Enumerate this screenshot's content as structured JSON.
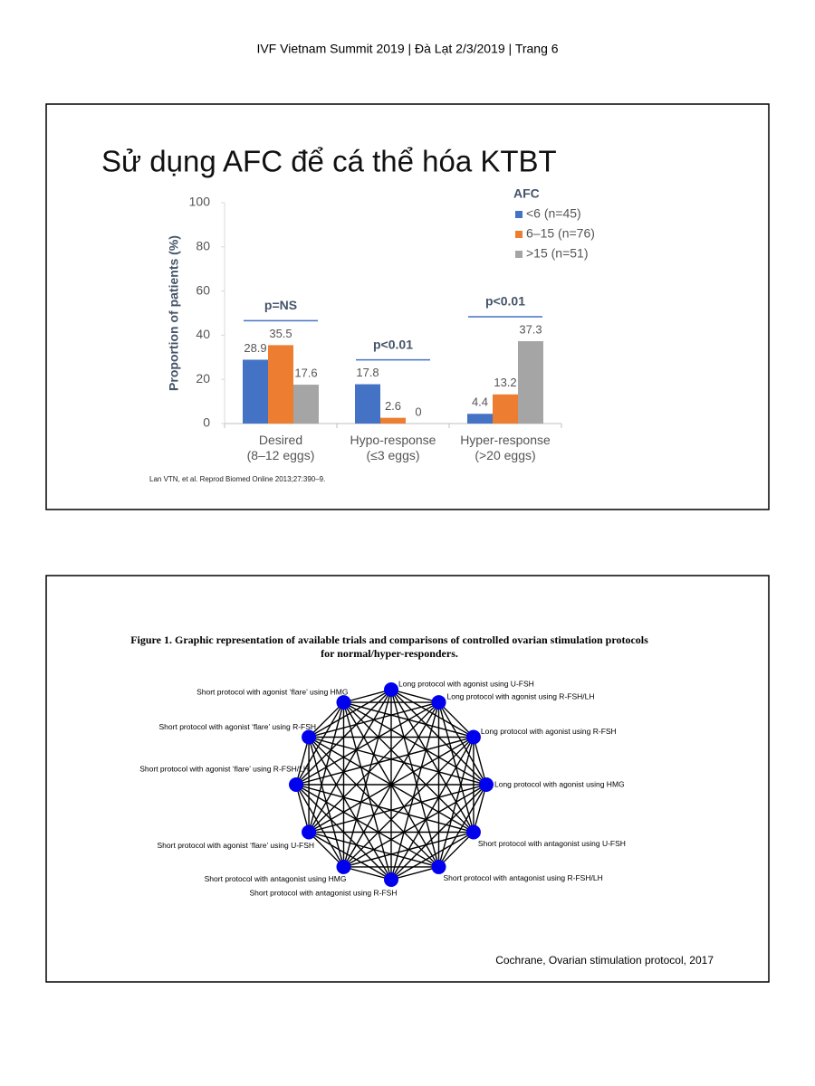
{
  "header": {
    "text": "IVF Vietnam Summit 2019   |   Đà Lạt 2/3/2019   |   Trang 6"
  },
  "slide1": {
    "title": "Sử dụng AFC để cá thể hóa KTBT",
    "citation": "Lan VTN, et al. Reprod Biomed Online 2013;27:390–9."
  },
  "chart_data": {
    "type": "bar",
    "ylabel": "Proportion of patients (%)",
    "legend_title": "AFC",
    "categories": [
      "Desired\n(8–12 eggs)",
      "Hypo-response\n(≤3 eggs)",
      "Hyper-response\n(>20 eggs)"
    ],
    "series": [
      {
        "name": "<6 (n=45)",
        "color": "#4472c4",
        "values": [
          28.9,
          17.8,
          4.4
        ]
      },
      {
        "name": "6–15 (n=76)",
        "color": "#ed7d31",
        "values": [
          35.5,
          2.6,
          13.2
        ]
      },
      {
        "name": ">15 (n=51)",
        "color": "#a5a5a5",
        "values": [
          17.6,
          0,
          37.3
        ]
      }
    ],
    "annotations": [
      "p=NS",
      "p<0.01",
      "p<0.01"
    ],
    "ylim": [
      0,
      100
    ],
    "yticks": [
      0,
      20,
      40,
      60,
      80,
      100
    ],
    "grid": false
  },
  "slide2": {
    "caption": "Figure 1.   Graphic representation of available trials and comparisons of controlled ovarian stimulation protocols for normal/hyper-responders.",
    "nodes": [
      {
        "label": "Long protocol with agonist  using U-FSH"
      },
      {
        "label": "Long protocol with agonist  using R-FSH/LH"
      },
      {
        "label": "Long protocol with agonist  using R-FSH"
      },
      {
        "label": "Long protocol with agonist  using HMG"
      },
      {
        "label": "Short protocol with antagonist using U-FSH"
      },
      {
        "label": "Short protocol with antagonist using R-FSH/LH"
      },
      {
        "label": "Short protocol with antagonist using R-FSH"
      },
      {
        "label": "Short protocol with antagonist using HMG"
      },
      {
        "label": "Short protocol with agonist ‘flare’ using U-FSH"
      },
      {
        "label": "Short protocol with agonist ‘flare’ using R-FSH/LH"
      },
      {
        "label": "Short protocol with agonist ‘flare’ using R-FSH"
      },
      {
        "label": "Short protocol with agonist ‘flare’ using HMG"
      }
    ],
    "source": "Cochrane, Ovarian stimulation protocol, 2017"
  }
}
